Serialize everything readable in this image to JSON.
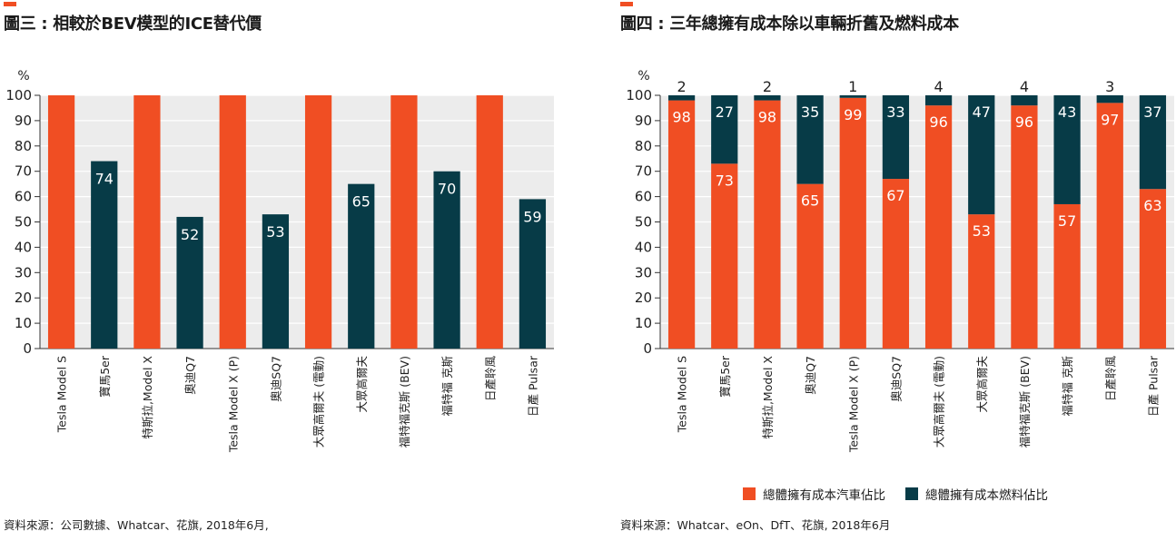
{
  "colors": {
    "orange": "#f04e23",
    "navy": "#073b47",
    "plot_bg": "#ececec",
    "grid": "#ffffff",
    "accent": "#f04e23"
  },
  "left": {
    "title": "圖三 : 相較於BEV模型的ICE替代價",
    "source": "資料來源：公司數據、Whatcar、花旗, 2018年6月,"
  },
  "right": {
    "title": "圖四 : 三年總擁有成本除以車輛折舊及燃料成本",
    "source": "資料來源：Whatcar、eOn、DfT、花旗, 2018年6月",
    "legend": [
      "總體擁有成本汽車佔比",
      "總體擁有成本燃料佔比"
    ]
  },
  "chart_data": [
    {
      "type": "bar",
      "title": "圖三 : 相較於BEV模型的ICE替代價",
      "ylabel": "%",
      "ylim": [
        0,
        100
      ],
      "yticks": [
        0,
        10,
        20,
        30,
        40,
        50,
        60,
        70,
        80,
        90,
        100
      ],
      "grid": true,
      "categories": [
        "Tesla Model S",
        "寶馬5er",
        "特斯拉,Model X",
        "奧迪Q7",
        "Tesla Model X (P)",
        "奧迪SQ7",
        "大眾高爾夫 (電動)",
        "大眾高爾夫",
        "福特福克斯 (BEV)",
        "福特福 克斯",
        "日產聆風",
        "日產 Pulsar"
      ],
      "values": [
        100,
        74,
        100,
        52,
        100,
        53,
        100,
        65,
        100,
        70,
        100,
        59
      ],
      "colors": [
        "orange",
        "navy",
        "orange",
        "navy",
        "orange",
        "navy",
        "orange",
        "navy",
        "orange",
        "navy",
        "orange",
        "navy"
      ],
      "labels": [
        "",
        "74",
        "",
        "52",
        "",
        "53",
        "",
        "65",
        "",
        "70",
        "",
        "59"
      ]
    },
    {
      "type": "bar",
      "stacked": true,
      "title": "圖四 : 三年總擁有成本除以車輛折舊及燃料成本",
      "ylabel": "%",
      "ylim": [
        0,
        100
      ],
      "yticks": [
        0,
        10,
        20,
        30,
        40,
        50,
        60,
        70,
        80,
        90,
        100
      ],
      "grid": true,
      "legend_position": "bottom",
      "categories": [
        "Tesla Model S",
        "寶馬5er",
        "特斯拉,Model X",
        "奧迪Q7",
        "Tesla Model X (P)",
        "奧迪SQ7",
        "大眾高爾夫 (電動)",
        "大眾高爾夫",
        "福特福克斯 (BEV)",
        "福特福 克斯",
        "日產聆風",
        "日產 Pulsar"
      ],
      "series": [
        {
          "name": "總體擁有成本汽車佔比",
          "color": "orange",
          "values": [
            98,
            73,
            98,
            65,
            99,
            67,
            96,
            53,
            96,
            57,
            97,
            63
          ]
        },
        {
          "name": "總體擁有成本燃料佔比",
          "color": "navy",
          "values": [
            2,
            27,
            2,
            35,
            1,
            33,
            4,
            47,
            4,
            43,
            3,
            37
          ]
        }
      ]
    }
  ]
}
